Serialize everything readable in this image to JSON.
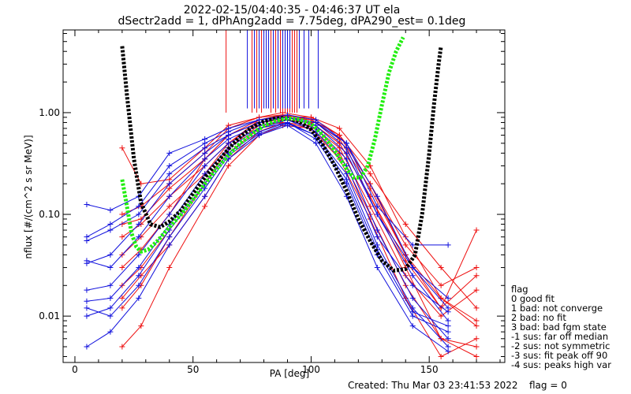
{
  "header": {
    "title_line1": "2022-02-15/04:40:35 - 04:46:37 UT ela",
    "title_line2": "dSectr2add = 1, dPhAng2add = 7.75deg, dPA290_est=   0.1deg"
  },
  "footer": {
    "created": "Created: Thu Mar 03 23:41:53 2022",
    "flag": "flag = 0"
  },
  "legend": {
    "title": "flag",
    "items": [
      " 0 good fit",
      " 1 bad: not converge",
      " 2 bad: no fit",
      " 3 bad: bad fgm state",
      "-1 sus: far off median",
      "-2 sus: not symmetric",
      "-3 sus: fit peak off 90",
      "-4 sus: peaks high var"
    ]
  },
  "chart_data": {
    "type": "line",
    "title": "2022-02-15/04:40:35 - 04:46:37 UT ela",
    "xlabel": "PA [deg]",
    "ylabel": "nflux [#/(cm^2 s sr MeV)]",
    "xlim": [
      -5,
      182
    ],
    "ylim": [
      0.0035,
      6.5
    ],
    "yscale": "log",
    "xticks": [
      0,
      50,
      100,
      150
    ],
    "xtick_labels": [
      "0",
      "50",
      "100",
      "150"
    ],
    "yticks": [
      0.01,
      0.1,
      1.0
    ],
    "ytick_labels": [
      "0.01",
      "0.10",
      "1.00"
    ],
    "colors": {
      "red": "#ee1111",
      "blue": "#1111dd",
      "green": "#22ee11",
      "black": "#000000"
    },
    "series": [
      {
        "color": "red",
        "x": [
          20,
          28,
          40,
          55,
          65,
          78,
          88,
          100,
          112,
          125,
          140,
          155,
          170
        ],
        "y": [
          0.45,
          0.2,
          0.22,
          0.45,
          0.75,
          0.9,
          0.95,
          0.85,
          0.6,
          0.2,
          0.04,
          0.015,
          0.008
        ]
      },
      {
        "color": "red",
        "x": [
          20,
          28,
          40,
          55,
          65,
          78,
          88,
          100,
          112,
          125,
          140,
          155,
          170
        ],
        "y": [
          0.012,
          0.02,
          0.06,
          0.2,
          0.4,
          0.7,
          0.85,
          0.8,
          0.5,
          0.15,
          0.03,
          0.006,
          0.004
        ]
      },
      {
        "color": "red",
        "x": [
          20,
          28,
          40,
          55,
          65,
          78,
          88,
          100,
          112,
          125,
          140,
          155,
          170
        ],
        "y": [
          0.03,
          0.045,
          0.1,
          0.35,
          0.6,
          0.85,
          0.92,
          0.9,
          0.7,
          0.3,
          0.06,
          0.015,
          0.009
        ]
      },
      {
        "color": "red",
        "x": [
          20,
          28,
          40,
          55,
          65,
          78,
          88,
          100,
          112,
          125,
          140,
          155,
          170
        ],
        "y": [
          0.06,
          0.08,
          0.15,
          0.3,
          0.5,
          0.8,
          0.9,
          0.85,
          0.6,
          0.25,
          0.08,
          0.03,
          0.012
        ]
      },
      {
        "color": "red",
        "x": [
          20,
          28,
          40,
          55,
          65,
          78,
          88,
          100,
          112,
          125,
          140,
          155,
          170
        ],
        "y": [
          0.005,
          0.008,
          0.03,
          0.12,
          0.3,
          0.6,
          0.75,
          0.7,
          0.4,
          0.1,
          0.02,
          0.006,
          0.005
        ]
      },
      {
        "color": "red",
        "x": [
          20,
          28,
          40,
          55,
          65,
          78,
          88,
          100,
          112,
          125,
          140,
          155,
          170
        ],
        "y": [
          0.1,
          0.12,
          0.2,
          0.4,
          0.7,
          0.9,
          1.0,
          0.9,
          0.6,
          0.2,
          0.05,
          0.02,
          0.03
        ]
      },
      {
        "color": "red",
        "x": [
          20,
          28,
          40,
          55,
          65,
          78,
          88,
          100,
          112,
          125,
          140,
          155,
          170
        ],
        "y": [
          0.02,
          0.03,
          0.07,
          0.2,
          0.45,
          0.75,
          0.8,
          0.75,
          0.45,
          0.12,
          0.025,
          0.01,
          0.018
        ]
      },
      {
        "color": "red",
        "x": [
          20,
          28,
          40,
          55,
          65,
          78,
          88,
          100,
          112,
          125,
          140,
          155,
          170
        ],
        "y": [
          0.04,
          0.06,
          0.12,
          0.25,
          0.5,
          0.85,
          0.95,
          0.85,
          0.55,
          0.18,
          0.04,
          0.012,
          0.025
        ]
      },
      {
        "color": "red",
        "x": [
          20,
          28,
          40,
          55,
          65,
          78,
          88,
          100,
          112,
          125,
          140,
          155,
          170
        ],
        "y": [
          0.015,
          0.025,
          0.05,
          0.15,
          0.35,
          0.65,
          0.8,
          0.7,
          0.35,
          0.09,
          0.015,
          0.004,
          0.006
        ]
      },
      {
        "color": "red",
        "x": [
          20,
          28,
          40,
          55,
          65,
          78,
          88,
          100,
          112,
          125,
          140,
          155,
          170
        ],
        "y": [
          0.08,
          0.09,
          0.18,
          0.35,
          0.6,
          0.8,
          0.85,
          0.8,
          0.5,
          0.15,
          0.035,
          0.012,
          0.07
        ]
      },
      {
        "color": "blue",
        "x": [
          5,
          15,
          27,
          40,
          55,
          65,
          78,
          90,
          102,
          115,
          128,
          143,
          158
        ],
        "y": [
          0.125,
          0.11,
          0.15,
          0.4,
          0.55,
          0.7,
          0.85,
          0.9,
          0.8,
          0.5,
          0.15,
          0.03,
          0.012
        ]
      },
      {
        "color": "blue",
        "x": [
          5,
          15,
          27,
          40,
          55,
          65,
          78,
          90,
          102,
          115,
          128,
          143,
          158
        ],
        "y": [
          0.055,
          0.07,
          0.1,
          0.25,
          0.45,
          0.6,
          0.8,
          0.9,
          0.75,
          0.4,
          0.1,
          0.025,
          0.009
        ]
      },
      {
        "color": "blue",
        "x": [
          5,
          15,
          27,
          40,
          55,
          65,
          78,
          90,
          102,
          115,
          128,
          143,
          158
        ],
        "y": [
          0.035,
          0.03,
          0.06,
          0.15,
          0.35,
          0.55,
          0.75,
          0.85,
          0.7,
          0.35,
          0.07,
          0.015,
          0.006
        ]
      },
      {
        "color": "blue",
        "x": [
          5,
          15,
          27,
          40,
          55,
          65,
          78,
          90,
          102,
          115,
          128,
          143,
          158
        ],
        "y": [
          0.018,
          0.02,
          0.04,
          0.1,
          0.3,
          0.5,
          0.7,
          0.8,
          0.6,
          0.25,
          0.05,
          0.012,
          0.005
        ]
      },
      {
        "color": "blue",
        "x": [
          5,
          15,
          27,
          40,
          55,
          65,
          78,
          90,
          102,
          115,
          128,
          143,
          158
        ],
        "y": [
          0.01,
          0.012,
          0.025,
          0.07,
          0.2,
          0.4,
          0.65,
          0.8,
          0.55,
          0.2,
          0.04,
          0.01,
          0.007
        ]
      },
      {
        "color": "blue",
        "x": [
          5,
          15,
          27,
          40,
          55,
          65,
          78,
          90,
          102,
          115,
          128,
          143,
          158
        ],
        "y": [
          0.06,
          0.08,
          0.12,
          0.3,
          0.5,
          0.65,
          0.85,
          0.95,
          0.85,
          0.5,
          0.12,
          0.05,
          0.05
        ]
      },
      {
        "color": "blue",
        "x": [
          5,
          15,
          27,
          40,
          55,
          65,
          78,
          90,
          102,
          115,
          128,
          143,
          158
        ],
        "y": [
          0.014,
          0.015,
          0.03,
          0.08,
          0.25,
          0.45,
          0.7,
          0.85,
          0.65,
          0.3,
          0.06,
          0.02,
          0.011
        ]
      },
      {
        "color": "blue",
        "x": [
          5,
          15,
          27,
          40,
          55,
          65,
          78,
          90,
          102,
          115,
          128,
          143,
          158
        ],
        "y": [
          0.005,
          0.007,
          0.015,
          0.05,
          0.15,
          0.35,
          0.6,
          0.75,
          0.5,
          0.15,
          0.03,
          0.008,
          0.0045
        ]
      },
      {
        "color": "blue",
        "x": [
          5,
          15,
          27,
          40,
          55,
          65,
          78,
          90,
          102,
          115,
          128,
          143,
          158
        ],
        "y": [
          0.033,
          0.04,
          0.08,
          0.2,
          0.4,
          0.6,
          0.8,
          0.9,
          0.8,
          0.45,
          0.1,
          0.03,
          0.015
        ]
      },
      {
        "color": "blue",
        "x": [
          5,
          15,
          27,
          40,
          55,
          65,
          78,
          90,
          102,
          115,
          128,
          143,
          158
        ],
        "y": [
          0.012,
          0.01,
          0.02,
          0.06,
          0.18,
          0.38,
          0.62,
          0.78,
          0.6,
          0.22,
          0.045,
          0.011,
          0.008
        ]
      },
      {
        "color": "black",
        "x": [
          20,
          22,
          25,
          28,
          32,
          36,
          40,
          45,
          50,
          55,
          60,
          65,
          70,
          75,
          80,
          85,
          90,
          95,
          100,
          105,
          110,
          115,
          120,
          125,
          130,
          135,
          140,
          144,
          147,
          150,
          152,
          154,
          155
        ],
        "y": [
          4.5,
          1.5,
          0.35,
          0.13,
          0.08,
          0.075,
          0.085,
          0.11,
          0.16,
          0.23,
          0.32,
          0.44,
          0.58,
          0.72,
          0.82,
          0.88,
          0.88,
          0.82,
          0.68,
          0.48,
          0.3,
          0.17,
          0.09,
          0.055,
          0.035,
          0.028,
          0.029,
          0.04,
          0.1,
          0.4,
          1.2,
          3.0,
          4.5
        ]
      },
      {
        "color": "green",
        "x": [
          20,
          22,
          24,
          26,
          28,
          31,
          35,
          40,
          45,
          50,
          55,
          60,
          65,
          70,
          75,
          80,
          85,
          90,
          95,
          100,
          105,
          110,
          115,
          118,
          121,
          124,
          127,
          130,
          133,
          136,
          139
        ],
        "y": [
          0.22,
          0.12,
          0.065,
          0.048,
          0.043,
          0.045,
          0.055,
          0.075,
          0.1,
          0.14,
          0.2,
          0.28,
          0.38,
          0.5,
          0.62,
          0.74,
          0.83,
          0.88,
          0.86,
          0.78,
          0.6,
          0.42,
          0.28,
          0.23,
          0.23,
          0.3,
          0.55,
          1.2,
          2.5,
          4.0,
          5.5
        ]
      }
    ],
    "peak_markers": {
      "red_x": [
        64,
        75,
        77,
        79,
        83,
        85,
        87,
        88,
        89,
        90,
        91,
        92,
        93,
        94
      ],
      "blue_x": [
        73,
        76,
        78,
        80,
        81,
        82,
        84,
        86,
        88,
        89,
        90,
        91,
        95,
        97,
        99,
        103
      ]
    }
  }
}
